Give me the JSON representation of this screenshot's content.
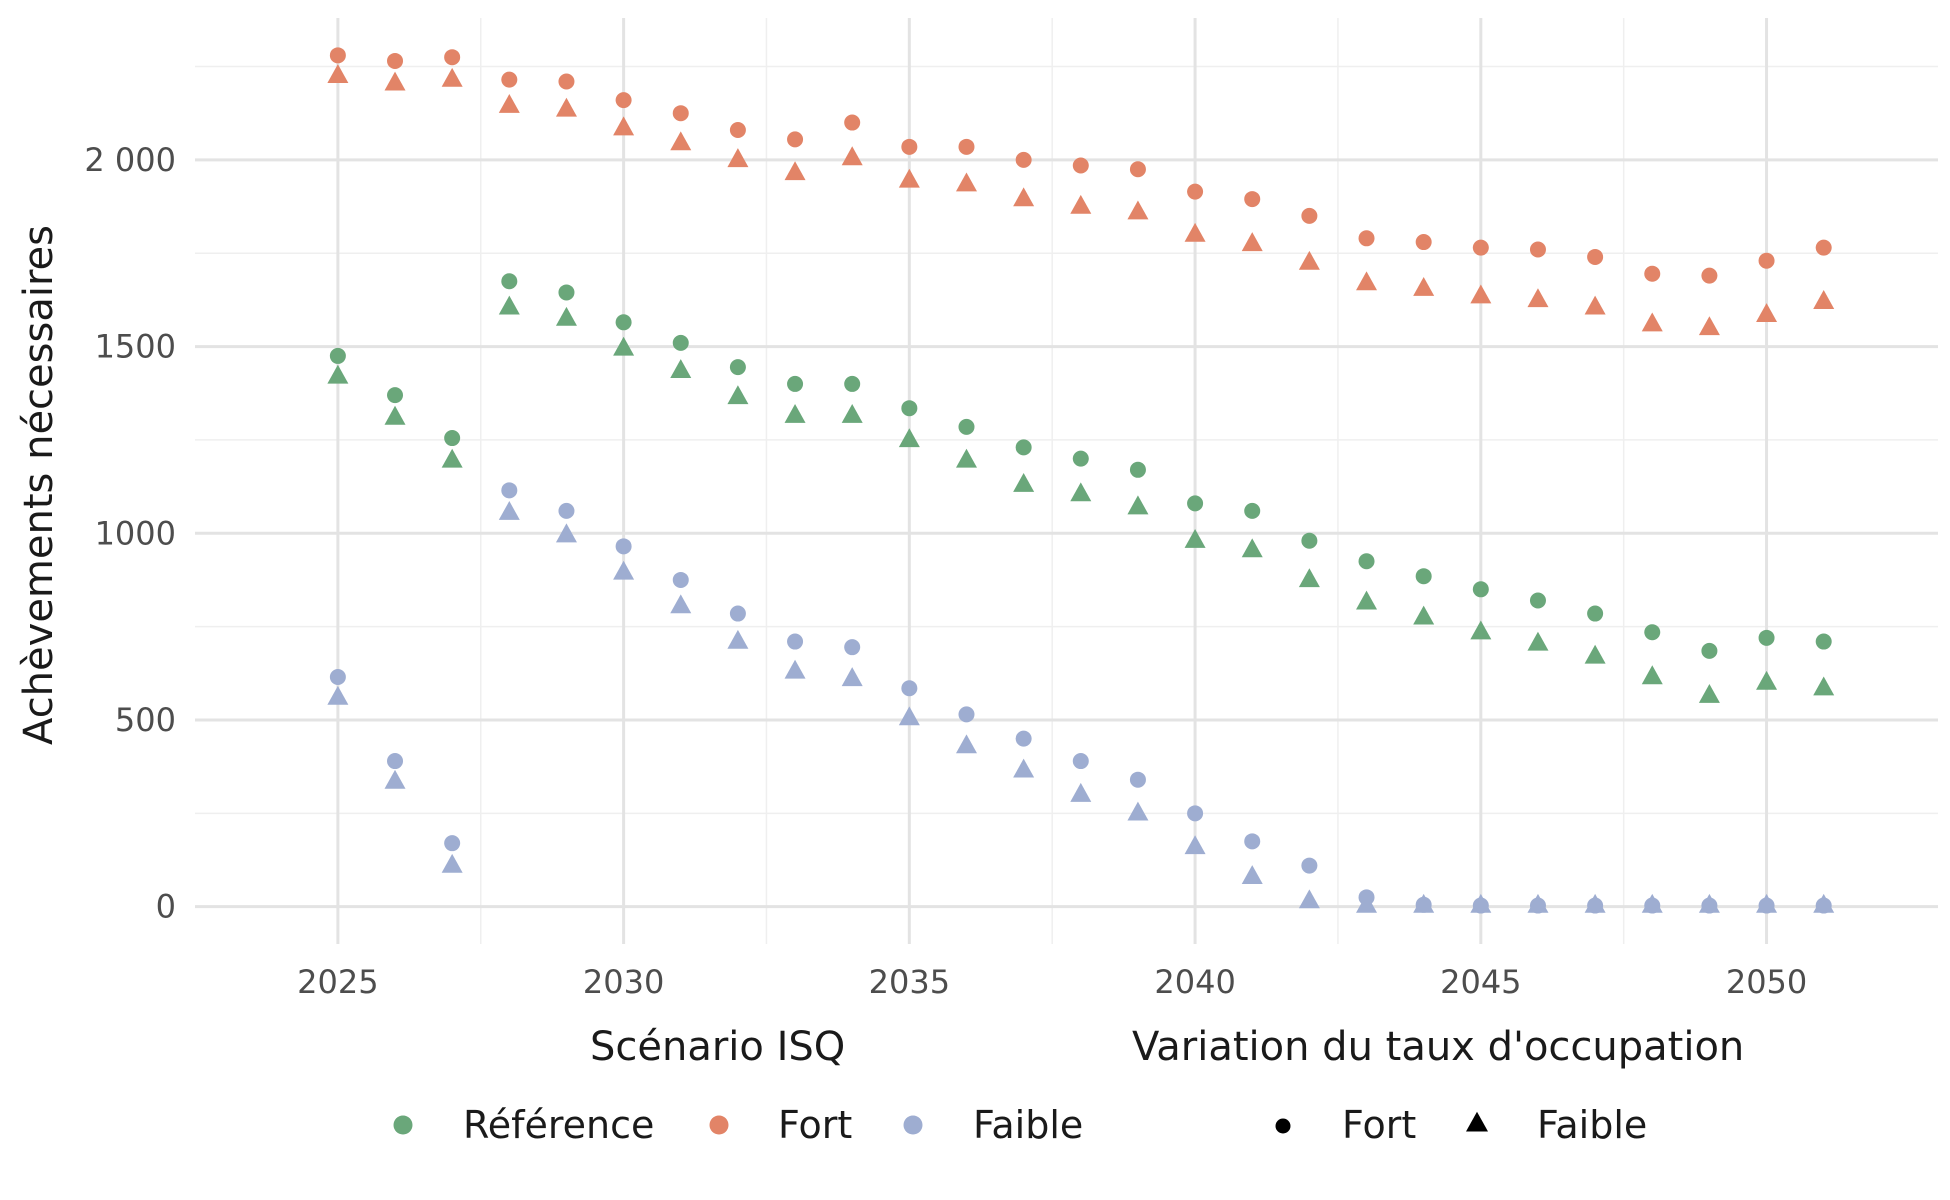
{
  "chart_data": {
    "type": "scatter",
    "title": "",
    "xlabel": "",
    "ylabel": "Achèvements nécessaires",
    "xlim": [
      2022.5,
      2053
    ],
    "ylim": [
      -100,
      2380
    ],
    "x_ticks": [
      2025,
      2030,
      2035,
      2040,
      2045,
      2050
    ],
    "x_tick_labels": [
      "2025",
      "2030",
      "2035",
      "2040",
      "2045",
      "2050"
    ],
    "y_ticks": [
      0,
      500,
      1000,
      1500,
      2000
    ],
    "y_tick_labels": [
      "0",
      "500",
      "1000",
      "1500",
      "2 000"
    ],
    "grid": true,
    "legend_position": "bottom",
    "legend_color_title": "Scénario ISQ",
    "legend_shape_title": "Variation du taux d'occupation",
    "x": [
      2025,
      2026,
      2027,
      2028,
      2029,
      2030,
      2031,
      2032,
      2033,
      2034,
      2035,
      2036,
      2037,
      2038,
      2039,
      2040,
      2041,
      2042,
      2043,
      2044,
      2045,
      2046,
      2047,
      2048,
      2049,
      2050,
      2051
    ],
    "series": [
      {
        "name": "Référence",
        "shape_name": "Fort",
        "color": "#6aa77a",
        "shape": "circle",
        "values": [
          1475,
          1370,
          1255,
          1675,
          1645,
          1565,
          1510,
          1445,
          1400,
          1400,
          1335,
          1285,
          1230,
          1200,
          1170,
          1080,
          1060,
          980,
          925,
          885,
          850,
          820,
          785,
          735,
          685,
          720,
          710
        ]
      },
      {
        "name": "Référence",
        "shape_name": "Faible",
        "color": "#6aa77a",
        "shape": "triangle",
        "values": [
          1420,
          1310,
          1195,
          1605,
          1575,
          1495,
          1435,
          1365,
          1315,
          1315,
          1250,
          1195,
          1130,
          1105,
          1070,
          980,
          955,
          875,
          815,
          775,
          735,
          705,
          670,
          615,
          565,
          600,
          585
        ]
      },
      {
        "name": "Fort",
        "shape_name": "Fort",
        "color": "#e28467",
        "shape": "circle",
        "values": [
          2280,
          2265,
          2275,
          2215,
          2210,
          2160,
          2125,
          2080,
          2055,
          2100,
          2035,
          2035,
          2000,
          1985,
          1975,
          1915,
          1895,
          1850,
          1790,
          1780,
          1765,
          1760,
          1740,
          1695,
          1690,
          1730,
          1765
        ]
      },
      {
        "name": "Fort",
        "shape_name": "Faible",
        "color": "#e28467",
        "shape": "triangle",
        "values": [
          2225,
          2205,
          2215,
          2145,
          2135,
          2085,
          2045,
          2000,
          1965,
          2005,
          1945,
          1935,
          1895,
          1875,
          1860,
          1800,
          1775,
          1725,
          1670,
          1655,
          1635,
          1625,
          1605,
          1560,
          1550,
          1585,
          1620
        ]
      },
      {
        "name": "Faible",
        "shape_name": "Fort",
        "color": "#9eadd1",
        "shape": "circle",
        "values": [
          615,
          390,
          170,
          1115,
          1060,
          965,
          875,
          785,
          710,
          695,
          585,
          515,
          450,
          390,
          340,
          250,
          175,
          110,
          25,
          5,
          3,
          3,
          3,
          3,
          3,
          3,
          3
        ]
      },
      {
        "name": "Faible",
        "shape_name": "Faible",
        "color": "#9eadd1",
        "shape": "triangle",
        "values": [
          560,
          335,
          110,
          1055,
          995,
          895,
          805,
          710,
          630,
          610,
          505,
          430,
          365,
          300,
          250,
          160,
          80,
          15,
          3,
          3,
          3,
          3,
          3,
          3,
          3,
          3,
          3
        ]
      }
    ],
    "legend_color_items": [
      {
        "label": "Référence",
        "color": "#6aa77a"
      },
      {
        "label": "Fort",
        "color": "#e28467"
      },
      {
        "label": "Faible",
        "color": "#9eadd1"
      }
    ],
    "legend_shape_items": [
      {
        "label": "Fort",
        "shape": "circle"
      },
      {
        "label": "Faible",
        "shape": "triangle"
      }
    ]
  }
}
